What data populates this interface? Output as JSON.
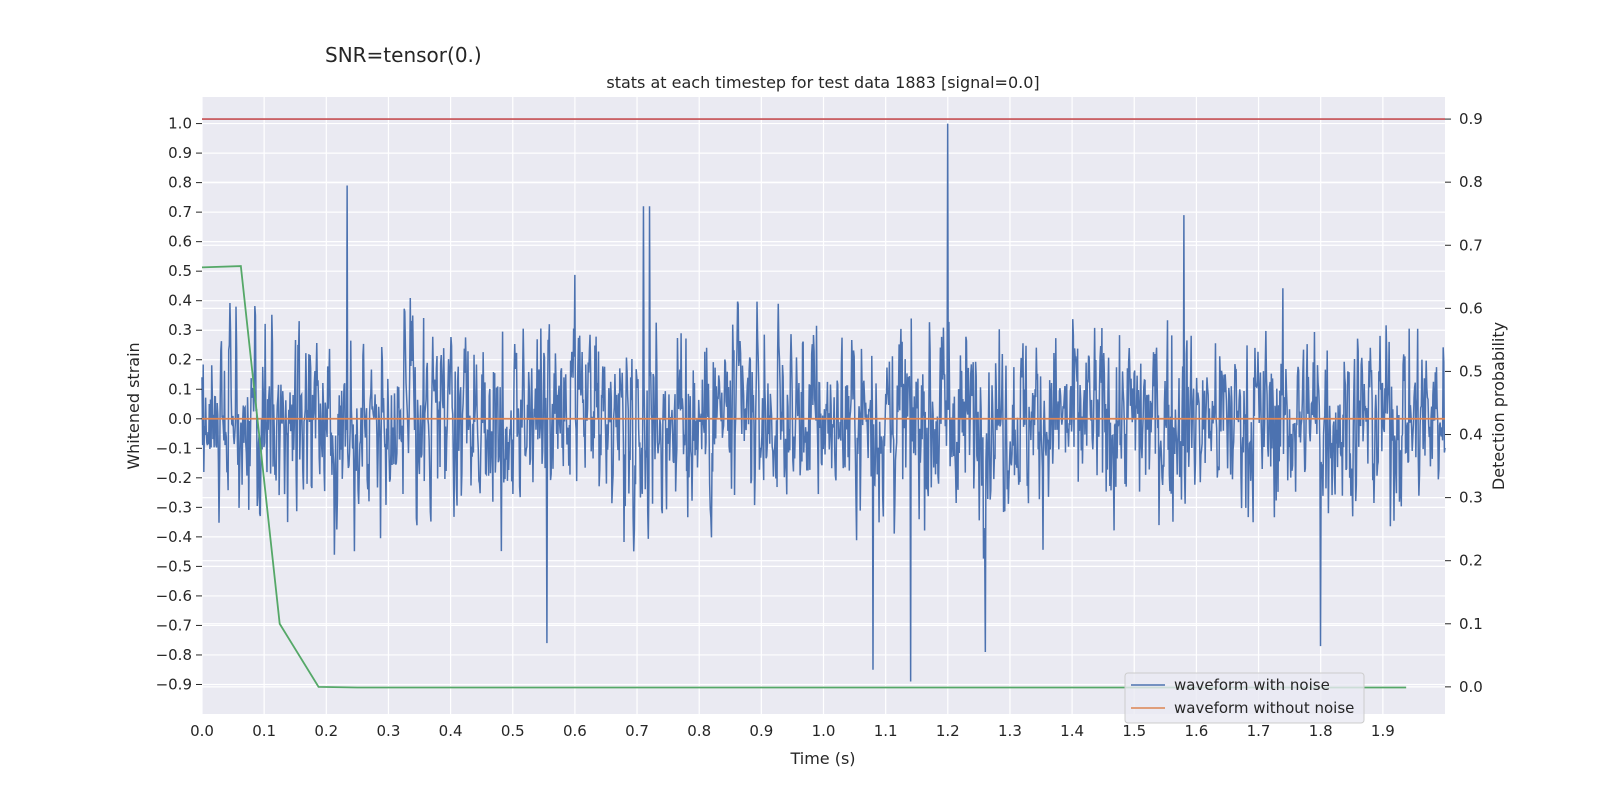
{
  "figure": {
    "suptitle": "SNR=tensor(0.)"
  },
  "chart_data": {
    "type": "line",
    "title": "stats at each timestep for test data 1883 [signal=0.0]",
    "xlabel": "Time (s)",
    "ylabel": "Whitened strain",
    "y2label": "Detection probability",
    "xlim": [
      0.0,
      2.0
    ],
    "ylim": [
      -1.0,
      1.09
    ],
    "y2lim": [
      -0.043,
      0.935
    ],
    "x_ticks": [
      0.0,
      0.1,
      0.2,
      0.3,
      0.4,
      0.5,
      0.6,
      0.7,
      0.8,
      0.9,
      1.0,
      1.1,
      1.2,
      1.3,
      1.4,
      1.5,
      1.6,
      1.7,
      1.8,
      1.9
    ],
    "x_tick_labels": [
      "0.0",
      "0.1",
      "0.2",
      "0.3",
      "0.4",
      "0.5",
      "0.6",
      "0.7",
      "0.8",
      "0.9",
      "1.0",
      "1.1",
      "1.2",
      "1.3",
      "1.4",
      "1.5",
      "1.6",
      "1.7",
      "1.8",
      "1.9"
    ],
    "y_ticks": [
      1.0,
      0.9,
      0.8,
      0.7,
      0.6,
      0.5,
      0.4,
      0.3,
      0.2,
      0.1,
      0.0,
      -0.1,
      -0.2,
      -0.3,
      -0.4,
      -0.5,
      -0.6,
      -0.7,
      -0.8,
      -0.9
    ],
    "y_tick_labels": [
      "1.0",
      "0.9",
      "0.8",
      "0.7",
      "0.6",
      "0.5",
      "0.4",
      "0.3",
      "0.2",
      "0.1",
      "0.0",
      "−0.1",
      "−0.2",
      "−0.3",
      "−0.4",
      "−0.5",
      "−0.6",
      "−0.7",
      "−0.8",
      "−0.9"
    ],
    "y2_ticks": [
      0.9,
      0.8,
      0.7,
      0.6,
      0.5,
      0.4,
      0.3,
      0.2,
      0.1,
      0.0
    ],
    "y2_tick_labels": [
      "0.9",
      "0.8",
      "0.7",
      "0.6",
      "0.5",
      "0.4",
      "0.3",
      "0.2",
      "0.1",
      "0.0"
    ],
    "grid": true,
    "legend_position": "lower-right",
    "noise_series": {
      "name": "waveform with noise",
      "color": "#4c72b0",
      "n_samples": 2048,
      "x_range": [
        0.0,
        2.0
      ],
      "y_min": -0.89,
      "y_max": 1.0,
      "typical_range": [
        -0.55,
        0.6
      ],
      "peaks": [
        {
          "x": 1.2,
          "y": 1.0
        },
        {
          "x": 0.234,
          "y": 0.79
        },
        {
          "x": 1.14,
          "y": -0.89
        },
        {
          "x": 1.08,
          "y": -0.85
        },
        {
          "x": 1.26,
          "y": -0.79
        },
        {
          "x": 1.8,
          "y": -0.77
        },
        {
          "x": 0.555,
          "y": -0.76
        },
        {
          "x": 1.58,
          "y": 0.69
        },
        {
          "x": 0.71,
          "y": 0.72
        },
        {
          "x": 0.72,
          "y": 0.72
        }
      ]
    },
    "clean_series": {
      "name": "waveform without noise",
      "color": "#dd8452",
      "y": 0.0
    },
    "probability_series": {
      "color": "#55a868",
      "x": [
        0.0,
        0.0625,
        0.125,
        0.1875,
        0.25,
        1.9375
      ],
      "y": [
        0.665,
        0.667,
        0.1,
        0.0,
        -0.001,
        -0.001
      ]
    },
    "threshold_line": {
      "color": "#c44e52",
      "y2": 0.9
    }
  }
}
